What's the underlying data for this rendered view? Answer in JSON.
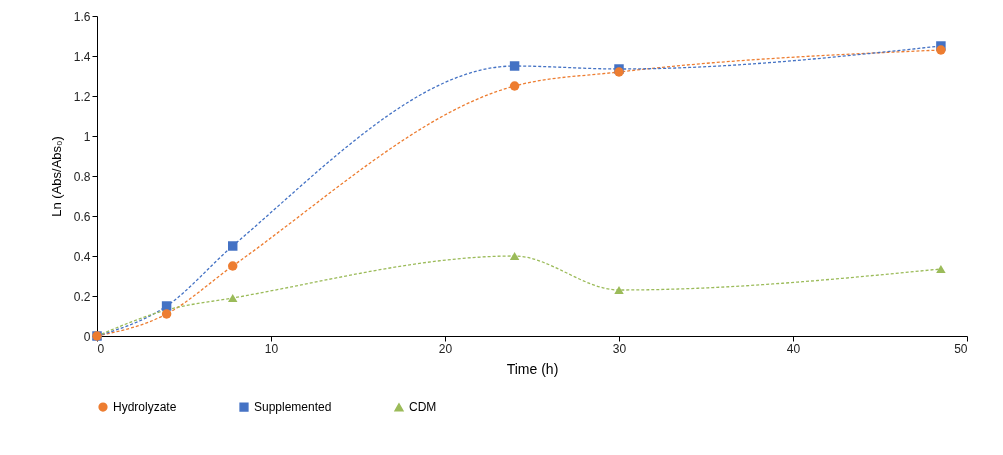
{
  "chart_data": {
    "type": "line",
    "xlabel": "Time (h)",
    "ylabel": "Ln (Abs/Abs₀)",
    "xlim": [
      0,
      50
    ],
    "xticks": [
      0,
      10,
      20,
      30,
      40,
      50
    ],
    "ylim": [
      0,
      1.6
    ],
    "yticks": [
      0,
      0.2,
      0.4,
      0.6,
      0.8,
      1,
      1.2,
      1.4,
      1.6
    ],
    "grid": false,
    "legend": "bottom",
    "line_style": "dashed",
    "series": [
      {
        "name": "Hydrolyzate",
        "color": "#ed7d31",
        "marker": "circle",
        "x": [
          0,
          4,
          7.8,
          24,
          30,
          48.5
        ],
        "values": [
          0,
          0.11,
          0.35,
          1.25,
          1.32,
          1.43
        ]
      },
      {
        "name": "Supplemented",
        "color": "#4472c4",
        "marker": "square",
        "x": [
          0,
          4,
          7.8,
          24,
          30,
          48.5
        ],
        "values": [
          0,
          0.15,
          0.45,
          1.35,
          1.335,
          1.45
        ]
      },
      {
        "name": "CDM",
        "color": "#9bbb59",
        "marker": "triangle",
        "x": [
          0,
          4,
          7.8,
          24,
          30,
          48.5
        ],
        "values": [
          0,
          0.13,
          0.19,
          0.4,
          0.23,
          0.335
        ]
      }
    ]
  }
}
